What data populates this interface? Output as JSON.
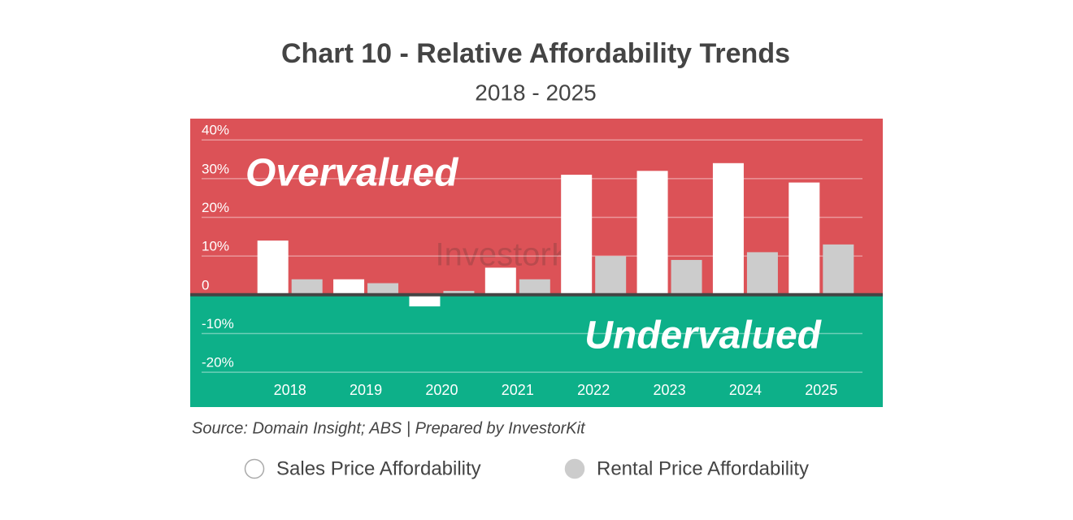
{
  "chart_data": {
    "type": "bar",
    "title": "Chart 10 - Relative Affordability Trends",
    "subtitle": "2018 - 2025",
    "source": "Source: Domain Insight; ABS | Prepared by InvestorKit",
    "annotations": [
      "Overvalued",
      "Undervalued"
    ],
    "watermark": "InvestorKit",
    "categories": [
      "2018",
      "2019",
      "2020",
      "2021",
      "2022",
      "2023",
      "2024",
      "2025"
    ],
    "series": [
      {
        "name": "Sales Price Affordability",
        "color": "#ffffff",
        "values": [
          14,
          4,
          -3,
          7,
          31,
          32,
          34,
          29
        ]
      },
      {
        "name": "Rental Price Affordability",
        "color": "#cccccc",
        "values": [
          4,
          3,
          1,
          4,
          10,
          9,
          11,
          13
        ]
      }
    ],
    "ylim": [
      -29,
      45.5
    ],
    "yticks": [
      {
        "value": -20,
        "label": "-20%"
      },
      {
        "value": -10,
        "label": "-10%"
      },
      0,
      {
        "value": 10,
        "label": "10%"
      },
      {
        "value": 20,
        "label": "20%"
      },
      {
        "value": 30,
        "label": "30%"
      },
      {
        "value": 40,
        "label": "40%"
      }
    ],
    "grid": true,
    "background_colors": {
      "above_zero": "#dc5257",
      "below_zero": "#0db089"
    },
    "legend": "bottom"
  }
}
